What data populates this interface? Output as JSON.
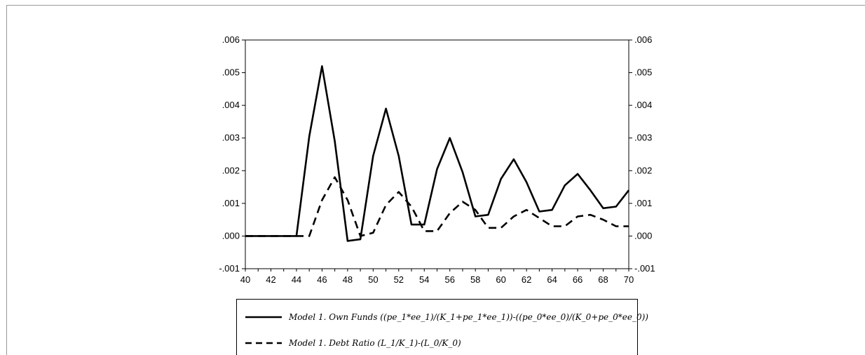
{
  "chart_data": {
    "type": "line",
    "title": "",
    "xlabel": "",
    "ylabel": "",
    "x": [
      40,
      41,
      42,
      43,
      44,
      45,
      46,
      47,
      48,
      49,
      50,
      51,
      52,
      53,
      54,
      55,
      56,
      57,
      58,
      59,
      60,
      61,
      62,
      63,
      64,
      65,
      66,
      67,
      68,
      69,
      70
    ],
    "xlim": [
      40,
      70
    ],
    "x_ticks": [
      "40",
      "42",
      "44",
      "46",
      "48",
      "50",
      "52",
      "54",
      "56",
      "58",
      "60",
      "62",
      "64",
      "66",
      "68",
      "70"
    ],
    "ylim": [
      -0.001,
      0.006
    ],
    "y_ticks_left": [
      ".006",
      ".005",
      ".004",
      ".003",
      ".002",
      ".001",
      ".000",
      "-.001"
    ],
    "y_ticks_right": [
      ".006",
      ".005",
      ".004",
      ".003",
      ".002",
      ".001",
      ".000",
      "-.001"
    ],
    "grid": false,
    "legend_position": "bottom",
    "series": [
      {
        "name": "Model 1. Own Funds ((pe_1*ee_1)/(K_1+pe_1*ee_1))-((pe_0*ee_0)/(K_0+pe_0*ee_0))",
        "style": "solid",
        "color": "#000000",
        "values": [
          0.0,
          0.0,
          0.0,
          0.0,
          0.0,
          0.00305,
          0.0052,
          0.0029,
          -0.00015,
          -0.0001,
          0.00245,
          0.0039,
          0.00245,
          0.00035,
          0.00035,
          0.00205,
          0.003,
          0.00195,
          0.0006,
          0.00065,
          0.00175,
          0.00235,
          0.00165,
          0.00075,
          0.0008,
          0.00155,
          0.0019,
          0.0014,
          0.00085,
          0.0009,
          0.0014
        ]
      },
      {
        "name": "Model 1. Debt Ratio (L_1/K_1)-(L_0/K_0)",
        "style": "dashed",
        "color": "#000000",
        "values": [
          0.0,
          0.0,
          0.0,
          0.0,
          0.0,
          0.0,
          0.0011,
          0.0018,
          0.0011,
          0.0,
          0.0001,
          0.00095,
          0.00135,
          0.0009,
          0.00015,
          0.00015,
          0.0007,
          0.00105,
          0.0008,
          0.00025,
          0.00025,
          0.0006,
          0.0008,
          0.00055,
          0.0003,
          0.0003,
          0.0006,
          0.00065,
          0.0005,
          0.0003,
          0.0003
        ]
      }
    ]
  }
}
